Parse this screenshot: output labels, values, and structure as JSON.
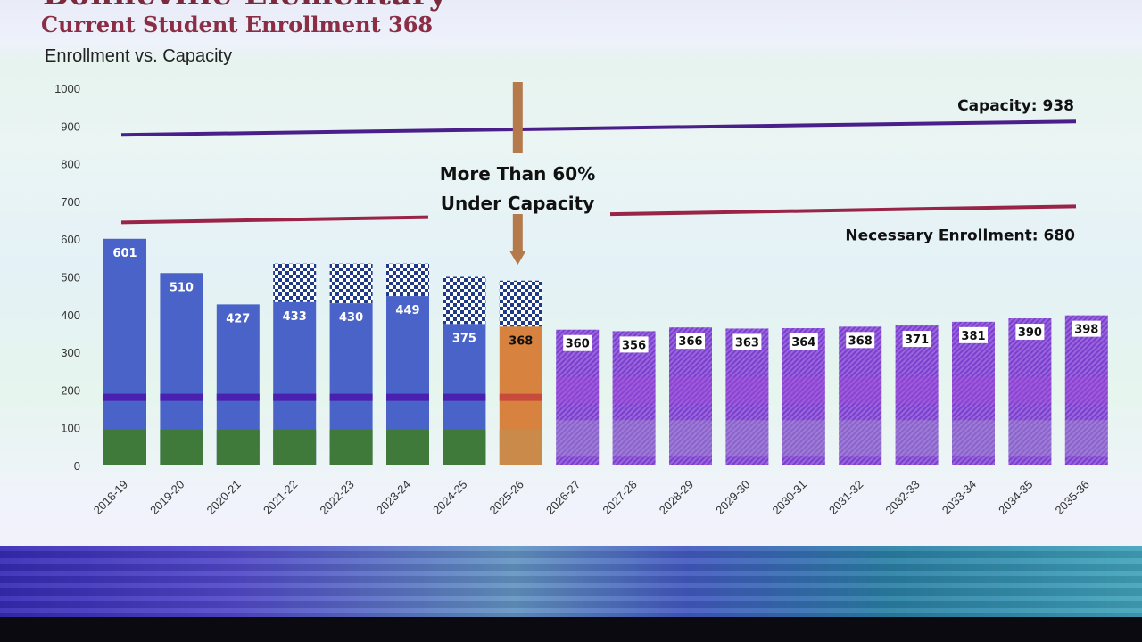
{
  "slide": {
    "heading_partial": "Bonneville Elementary",
    "subtitle": "Current Student Enrollment 368"
  },
  "chart_data": {
    "type": "bar",
    "title": "Enrollment vs. Capacity",
    "ylim": [
      0,
      1000
    ],
    "yticks": [
      0,
      100,
      200,
      300,
      400,
      500,
      600,
      700,
      800,
      900,
      1000
    ],
    "categories": [
      "2018-19",
      "2019-20",
      "2020-21",
      "2021-22",
      "2022-23",
      "2023-24",
      "2024-25",
      "2025-26",
      "2026-27",
      "2027-28",
      "2028-29",
      "2029-30",
      "2030-31",
      "2031-32",
      "2032-33",
      "2033-34",
      "2034-35",
      "2035-36"
    ],
    "values": [
      601,
      510,
      427,
      433,
      430,
      449,
      375,
      368,
      360,
      356,
      366,
      363,
      364,
      368,
      371,
      381,
      390,
      398
    ],
    "period": [
      "actual",
      "actual",
      "actual",
      "actual",
      "actual",
      "actual",
      "actual",
      "current",
      "projected",
      "projected",
      "projected",
      "projected",
      "projected",
      "projected",
      "projected",
      "projected",
      "projected",
      "projected"
    ],
    "checkered_top": [
      null,
      null,
      null,
      535,
      535,
      535,
      500,
      490,
      null,
      null,
      null,
      null,
      null,
      null,
      null,
      null,
      null,
      null
    ],
    "reference_lines": [
      {
        "label": "Capacity: 938",
        "value": 938,
        "color": "#4a1f8a"
      },
      {
        "label": "Necessary Enrollment: 680",
        "value": 680,
        "color": "#9a2448"
      }
    ],
    "annotation": {
      "lines": [
        "More Than 60%",
        "Under Capacity"
      ],
      "at_category": "2025-26"
    },
    "colors": {
      "actual": "#4a63c8",
      "current": "#d7823f",
      "projected": "#8f56d6",
      "base_band": "#3f7a3a",
      "mid_line": "#4b1fb0",
      "checker": "#203a8a",
      "arrow": "#b57a4c"
    },
    "grid": false,
    "legend": "none"
  }
}
